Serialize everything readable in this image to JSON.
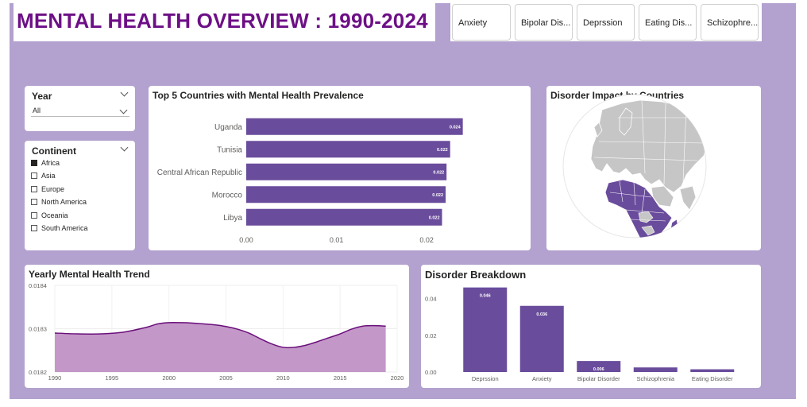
{
  "header": {
    "title": "MENTAL HEALTH OVERVIEW : 1990-2024"
  },
  "tabs": [
    {
      "label": "Anxiety"
    },
    {
      "label": "Bipolar Dis..."
    },
    {
      "label": "Deprssion"
    },
    {
      "label": "Eating Dis..."
    },
    {
      "label": "Schizophre..."
    }
  ],
  "year_slicer": {
    "label": "Year",
    "value": "All"
  },
  "continent_slicer": {
    "label": "Continent",
    "items": [
      {
        "label": "Africa",
        "checked": true
      },
      {
        "label": "Asia",
        "checked": false
      },
      {
        "label": "Europe",
        "checked": false
      },
      {
        "label": "North America",
        "checked": false
      },
      {
        "label": "Oceania",
        "checked": false
      },
      {
        "label": "South America",
        "checked": false
      }
    ]
  },
  "map": {
    "title": "Disorder Impact by Countries"
  },
  "colors": {
    "accent": "#6a4c9c",
    "area_fill": "#c497c9",
    "area_line": "#6a0f7a",
    "title": "#6d0f86",
    "background": "#b3a1cf"
  },
  "chart_data": [
    {
      "type": "bar",
      "orientation": "horizontal",
      "title": "Top 5 Countries with Mental Health Prevalence",
      "categories": [
        "Uganda",
        "Tunisia",
        "Central African Republic",
        "Morocco",
        "Libya"
      ],
      "values": [
        0.024,
        0.022,
        0.022,
        0.022,
        0.022
      ],
      "bar_lengths": [
        0.024,
        0.0226,
        0.0222,
        0.0221,
        0.0217
      ],
      "data_labels": [
        "0.024",
        "0.022",
        "0.022",
        "0.022",
        "0.022"
      ],
      "xticks": [
        "0.00",
        "0.01",
        "0.02"
      ],
      "xlim": [
        0,
        0.025
      ],
      "grid": false
    },
    {
      "type": "area",
      "title": "Yearly Mental Health Trend",
      "x": [
        1990,
        1992,
        1994,
        1996,
        1998,
        1999,
        2000,
        2001,
        2002,
        2004,
        2005,
        2006,
        2007,
        2008,
        2009,
        2010,
        2011,
        2012,
        2013,
        2014,
        2015,
        2016,
        2017,
        2018,
        2019
      ],
      "y": [
        0.01829,
        0.018288,
        0.018288,
        0.018292,
        0.018303,
        0.018311,
        0.018314,
        0.018314,
        0.018313,
        0.018309,
        0.018305,
        0.018299,
        0.01829,
        0.018277,
        0.018265,
        0.018257,
        0.018257,
        0.018262,
        0.01827,
        0.018279,
        0.018288,
        0.018299,
        0.018306,
        0.018307,
        0.018306
      ],
      "xticks": [
        "1990",
        "1995",
        "2000",
        "2005",
        "2010",
        "2015",
        "2020"
      ],
      "yticks": [
        "0.0184",
        "0.0183",
        "0.0182"
      ],
      "xlim": [
        1990,
        2020
      ],
      "ylim": [
        0.0182,
        0.0184
      ],
      "grid": true
    },
    {
      "type": "bar",
      "title": "Disorder Breakdown",
      "categories": [
        "Deprssion",
        "Anxiety",
        "Bipolar Disorder",
        "Schizophrenia",
        "Eating Disorder"
      ],
      "values": [
        0.046,
        0.036,
        0.006,
        0.0025,
        0.0015
      ],
      "data_labels": [
        "0.046",
        "0.036",
        "0.006",
        "",
        ""
      ],
      "yticks": [
        "0.04",
        "0.02",
        "0.00"
      ],
      "ylim": [
        0,
        0.048
      ],
      "grid": false
    }
  ]
}
